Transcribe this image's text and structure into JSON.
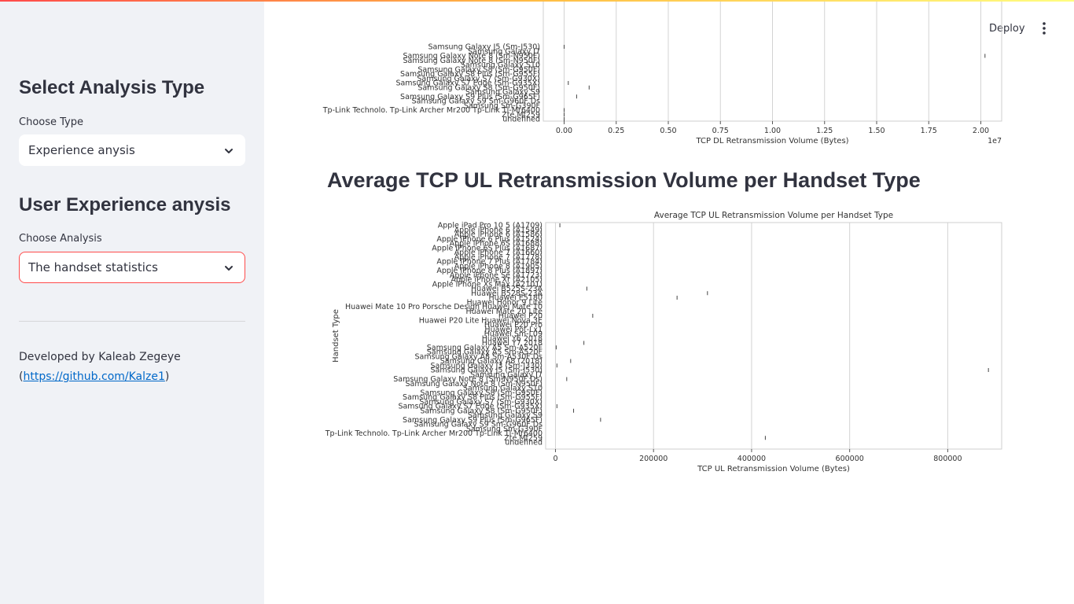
{
  "app": {
    "deploy_label": "Deploy",
    "menu_icon": "kebab-menu-icon"
  },
  "sidebar": {
    "analysis_heading": "Select Analysis Type",
    "type_label": "Choose Type",
    "type_value": "Experience anysis",
    "experience_heading": "User Experience anysis",
    "analysis_label": "Choose Analysis",
    "analysis_value": "The handset statistics",
    "footer_prefix": "Developed by Kaleab Zegeye (",
    "footer_link": "https://github.com/Kalze1",
    "footer_suffix": ")"
  },
  "main": {
    "section_heading": "Average TCP UL Retransmission Volume per Handset Type"
  },
  "chart_data": [
    {
      "type": "scatter",
      "title": "",
      "xlabel": "TCP DL Retransmission Volume (Bytes)",
      "ylabel": "",
      "x_offset_label": "1e7",
      "xlim": [
        -0.1,
        2.1
      ],
      "x_ticks": [
        0.0,
        0.25,
        0.5,
        0.75,
        1.0,
        1.25,
        1.5,
        1.75,
        2.0
      ],
      "x_tick_labels": [
        "0.00",
        "0.25",
        "0.50",
        "0.75",
        "1.00",
        "1.25",
        "1.50",
        "1.75",
        "2.00"
      ],
      "grid": true,
      "categories": [
        "Samsung Galaxy J5 (Sm-J530)",
        "Samsung Galaxy J7",
        "Samsung Galaxy Note 8 (Sm-N950F)",
        "Samsung Galaxy Note 8 (Sm-N950F)",
        "Samsung Galaxy S10",
        "Samsung Galaxy S8 (Sm-G950F)",
        "Samsung Galaxy S8 Plus (Sm-G955F)",
        "Samsung Galaxy S7 (Sm-G930X)",
        "Samsung Galaxy S7 Edge (Sm-G935X)",
        "Samsung Galaxy S8 (Sm-G950F)",
        "Samsung Galaxy S9",
        "Samsung Galaxy S9 Plus (Sm-G965F)",
        "Samsung Galaxy S9 Sm-G960F Ds",
        "Samsung Sm-G390F",
        "Tp-Link Technolo. Tp-Link Archer Mr200 Tp-Link Tl-Mr6400",
        "Zte Mf259",
        "undefined"
      ],
      "values": [
        0.0,
        null,
        2.02,
        null,
        null,
        null,
        null,
        null,
        0.02,
        0.12,
        null,
        0.06,
        null,
        null,
        0.0,
        0.0,
        0.0
      ]
    },
    {
      "type": "scatter",
      "title": "Average TCP UL Retransmission Volume per Handset Type",
      "xlabel": "TCP UL Retransmission Volume (Bytes)",
      "ylabel": "Handset Type",
      "xlim": [
        -20000,
        910000
      ],
      "x_ticks": [
        0,
        200000,
        400000,
        600000,
        800000
      ],
      "x_tick_labels": [
        "0",
        "200000",
        "400000",
        "600000",
        "800000"
      ],
      "grid": true,
      "categories": [
        "Apple iPad Pro 10 5 (A1709)",
        "Apple iPhone 6 (A1549)",
        "Apple iPhone 6 (A1586)",
        "Apple iPhone 6 Plus (A1524)",
        "Apple iPhone 6S (A1688)",
        "Apple iPhone 6S Plus (A1687)",
        "Apple iPhone 7 (A1660)",
        "Apple iPhone 7 (A1778)",
        "Apple iPhone 7 Plus (A1784)",
        "Apple iPhone 8 (A1905)",
        "Apple iPhone 8 Plus (A1897)",
        "Apple iPhone Se (A1723)",
        "Apple iPhone Xr (A2105)",
        "Apple iPhone Xs Max (A2101)",
        "Huawei B525S-23A",
        "Huawei B528S-23A",
        "Huawei E5180",
        "Huawei Honor 9 Lite",
        "Huawei Mate 10 Pro Porsche Design Huawei Mate 10",
        "Huawei Mate 20 Lite",
        "Huawei P20",
        "Huawei P20 Lite Huawei Nova 3E",
        "Huawei P20 Pro",
        "Huawei Pot-Lx1",
        "Huawei Sm-L09",
        "Huawei Y6 2018",
        "Huawei Y7 2018",
        "Samsung Galaxy A5 Sm-A520F",
        "Samsung Galaxy A5 Sm-A520F",
        "Samsung Galaxy A8 Sm-A530F Ds",
        "Samsung Galaxy A8 (2018)",
        "Samsung Galaxy J3 (Sm-J330)",
        "Samsung Galaxy J5 (Sm-J530)",
        "Samsung Galaxy J7",
        "Samsung Galaxy Note 8 (Sm-N950F Ds)",
        "Samsung Galaxy Note 8 (Sm-N950F)",
        "Samsung Galaxy S10",
        "Samsung Galaxy S8 (Sm-G950F)",
        "Samsung Galaxy S8 Plus (Sm-G955F)",
        "Samsung Galaxy S7 (Sm-G930X)",
        "Samsung Galaxy S7 Edge (Sm-G935X)",
        "Samsung Galaxy S8 (Sm-G950F)",
        "Samsung Galaxy S9",
        "Samsung Galaxy S9 Plus (Sm-G965F)",
        "Samsung Galaxy S9 Sm-G960F Ds",
        "Samsung Sm-G390F",
        "Tp-Link Technolo. Tp-Link Archer Mr200 Tp-Link Tl-Mr6400",
        "Zte Mf259",
        "undefined"
      ],
      "values": [
        9000,
        null,
        null,
        null,
        null,
        null,
        null,
        null,
        null,
        null,
        null,
        null,
        null,
        null,
        64000,
        310000,
        248000,
        null,
        null,
        null,
        76000,
        null,
        null,
        null,
        null,
        null,
        58000,
        1500,
        null,
        null,
        31000,
        3000,
        883000,
        null,
        23000,
        null,
        null,
        null,
        null,
        null,
        3000,
        37000,
        null,
        92000,
        null,
        null,
        null,
        428000,
        null
      ]
    }
  ]
}
